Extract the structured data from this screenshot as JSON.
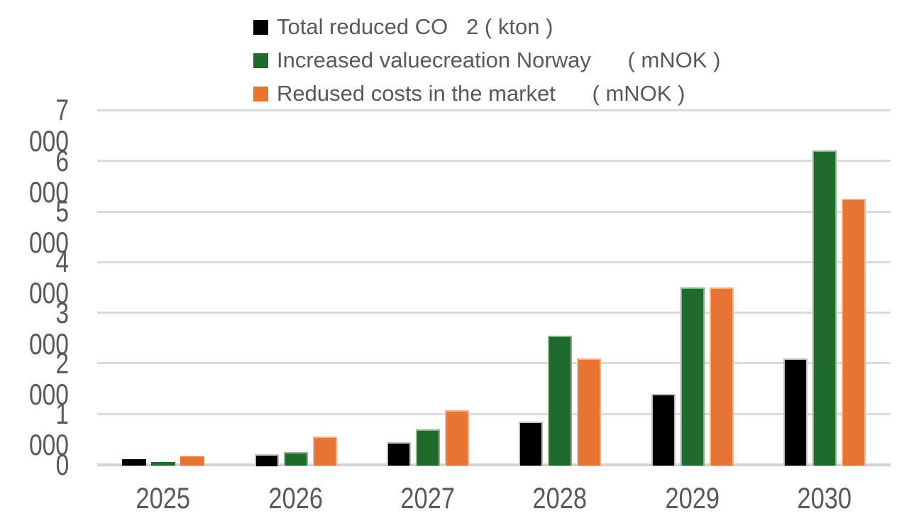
{
  "page": {
    "background": "#ffffff"
  },
  "chart_data": {
    "type": "bar",
    "title": "",
    "xlabel": "",
    "ylabel": "",
    "categories": [
      "2025",
      "2026",
      "2027",
      "2028",
      "2029",
      "2030"
    ],
    "series": [
      {
        "name": "total-reduced-co2-kton",
        "label": "Total reduced CO   2 ( kton )",
        "color": "#000000",
        "border_color": "#bfbfbf",
        "values": [
          100,
          210,
          440,
          850,
          1400,
          2100
        ]
      },
      {
        "name": "increased-valuecreation-norway-mnok",
        "label": "Increased valuecreation Norway      ( mNOK )",
        "color": "#1f6b2b",
        "border_color": "#8cb48c",
        "values": [
          50,
          240,
          690,
          2550,
          3500,
          6200
        ]
      },
      {
        "name": "redused-costs-in-the-market-mnok",
        "label": "Redused costs in the market      ( mNOK )",
        "color": "#e87434",
        "border_color": "#f2b48e",
        "values": [
          160,
          550,
          1070,
          2100,
          3500,
          5250
        ]
      }
    ],
    "ylim": [
      0,
      7000
    ],
    "ytick_step": 1000,
    "ytick_labels": [
      "0",
      "1 000",
      "2 000",
      "3 000",
      "4 000",
      "5 000",
      "6 000",
      "7 000"
    ],
    "grid": true,
    "legend_position": "top-left",
    "colors": {
      "axis_text": "#595959",
      "gridline": "#dbdbdb",
      "baseline": "#d2d2d2"
    }
  }
}
